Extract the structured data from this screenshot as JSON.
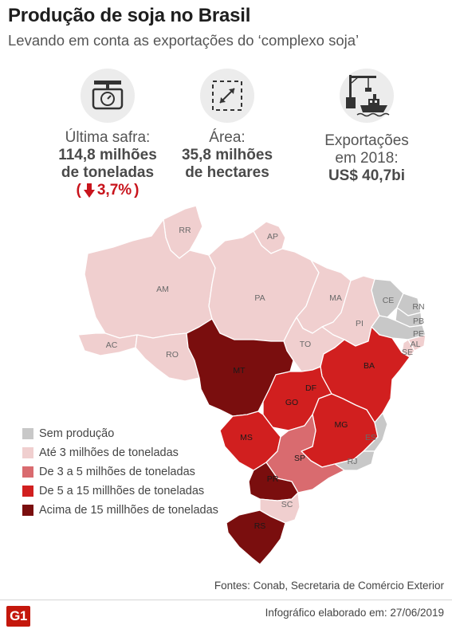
{
  "header": {
    "title": "Produção de soja no Brasil",
    "subtitle": "Levando em conta as exportações do ‘complexo soja’"
  },
  "stats": [
    {
      "icon": "scale-icon",
      "caption": "Última safra:",
      "value_line1": "114,8 milhões",
      "value_line2": "de toneladas",
      "change_open": "(",
      "change_value": "3,7%",
      "change_close": ")",
      "change_direction": "down"
    },
    {
      "icon": "area-resize-icon",
      "caption": "Área:",
      "value_line1": "35,8 milhões",
      "value_line2": "de hectares"
    },
    {
      "icon": "port-crane-ship-icon",
      "caption_line1": "Exportações",
      "caption_line2": "em 2018:",
      "value": "US$ 40,7bi"
    }
  ],
  "legend": [
    {
      "label": "Sem produção",
      "color": "#c8c8c8"
    },
    {
      "label": "Até 3 milhões de toneladas",
      "color": "#f0cfcf"
    },
    {
      "label": "De 3 a 5 milhões de toneladas",
      "color": "#d96b6f"
    },
    {
      "label": "De 5 a 15 millhões de toneladas",
      "color": "#d11f1f"
    },
    {
      "label": "Acima de 15 millhões de toneladas",
      "color": "#7a0e0e"
    }
  ],
  "map": {
    "states": [
      {
        "code": "RR",
        "category": 1
      },
      {
        "code": "AP",
        "category": 1
      },
      {
        "code": "AM",
        "category": 1
      },
      {
        "code": "PA",
        "category": 1
      },
      {
        "code": "MA",
        "category": 1
      },
      {
        "code": "CE",
        "category": 0
      },
      {
        "code": "RN",
        "category": 0
      },
      {
        "code": "PB",
        "category": 0
      },
      {
        "code": "PE",
        "category": 0
      },
      {
        "code": "PI",
        "category": 1
      },
      {
        "code": "AL",
        "category": 1
      },
      {
        "code": "SE",
        "category": 1
      },
      {
        "code": "AC",
        "category": 1
      },
      {
        "code": "RO",
        "category": 1
      },
      {
        "code": "TO",
        "category": 1
      },
      {
        "code": "BA",
        "category": 3
      },
      {
        "code": "MT",
        "category": 4
      },
      {
        "code": "DF",
        "category": 3
      },
      {
        "code": "GO",
        "category": 3
      },
      {
        "code": "MG",
        "category": 3
      },
      {
        "code": "ES",
        "category": 0
      },
      {
        "code": "RJ",
        "category": 0
      },
      {
        "code": "MS",
        "category": 3
      },
      {
        "code": "SP",
        "category": 2
      },
      {
        "code": "PR",
        "category": 4
      },
      {
        "code": "SC",
        "category": 1
      },
      {
        "code": "RS",
        "category": 4
      }
    ]
  },
  "footer": {
    "sources": "Fontes: Conab, Secretaria de Comércio Exterior",
    "logo": "G1",
    "credit": "Infográfico elaborado em: 27/06/2019"
  }
}
